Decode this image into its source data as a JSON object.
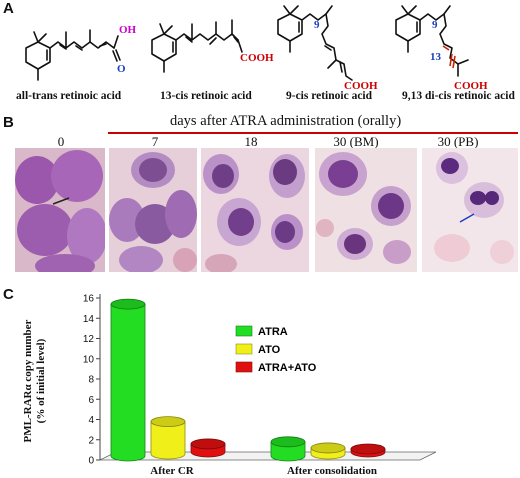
{
  "panelA": {
    "letter": "A",
    "molecules": [
      {
        "name": "all-trans retinoic acid",
        "atoms": [
          "OH",
          "O"
        ]
      },
      {
        "name": "13-cis retinoic acid",
        "atoms": [
          "COOH"
        ]
      },
      {
        "name": "9-cis retinoic acid",
        "atoms": [
          "COOH"
        ],
        "locants": [
          "9"
        ]
      },
      {
        "name": "9,13 di-cis retinoic acid",
        "atoms": [
          "COOH"
        ],
        "locants": [
          "9",
          "13"
        ]
      }
    ]
  },
  "panelB": {
    "letter": "B",
    "title": "days after ATRA administration (orally)",
    "days": [
      "0",
      "7",
      "18",
      "30 (BM)",
      "30 (PB)"
    ]
  },
  "panelC": {
    "letter": "C",
    "chart_data": {
      "type": "bar",
      "ylabel": "PML-RARα copy number (% of initial level)",
      "ylabel_lines": [
        "PML-RARα copy number",
        "(% of initial level)"
      ],
      "ylim": [
        0,
        16
      ],
      "yticks": [
        "0",
        "2",
        "4",
        "6",
        "8",
        "10",
        "12",
        "14",
        "16"
      ],
      "categories": [
        "After CR",
        "After consolidation"
      ],
      "series": [
        {
          "name": "ATRA",
          "color": "#22dd22",
          "values": [
            15,
            1.4
          ]
        },
        {
          "name": "ATO",
          "color": "#f0ef1a",
          "values": [
            3.2,
            0.6
          ]
        },
        {
          "name": "ATRA+ATO",
          "color": "#e01010",
          "values": [
            0.8,
            0.3
          ]
        }
      ],
      "legend": "upper-center",
      "grid": false
    }
  },
  "colors": {
    "accent_red": "#cc0000",
    "label_blue": "#1a3fbf",
    "oh_magenta": "#cc00cc"
  }
}
